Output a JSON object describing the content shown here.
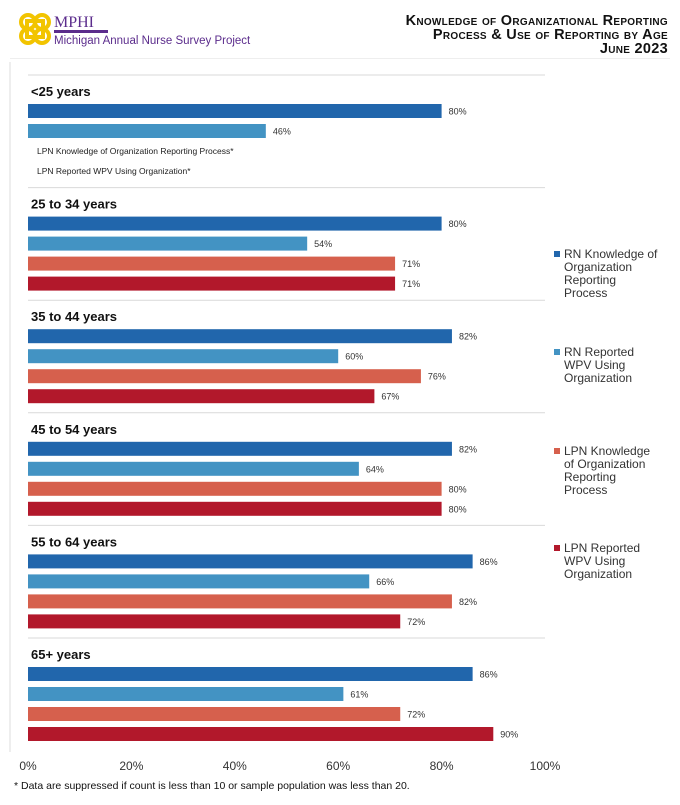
{
  "header": {
    "logo_name": "MPHI",
    "logo_subtitle": "Michigan Annual Nurse Survey Project",
    "title_lines": [
      "Knowledge of Organizational Reporting",
      "Process & Use of Reporting by Age",
      "June 2023"
    ]
  },
  "chart_data": {
    "type": "bar",
    "orientation": "horizontal",
    "title": "Knowledge of Organizational Reporting Process & Use of Reporting by Age, June 2023",
    "xlim": [
      0,
      100
    ],
    "xticks": [
      "0%",
      "20%",
      "40%",
      "60%",
      "80%",
      "100%"
    ],
    "xtick_values": [
      0,
      20,
      40,
      60,
      80,
      100
    ],
    "legend_position": "right",
    "series": [
      {
        "name": "RN Knowledge of Organization Reporting Process",
        "color": "#2166ac"
      },
      {
        "name": "RN Reported WPV Using Organization",
        "color": "#4393c3"
      },
      {
        "name": "LPN Knowledge of Organization Reporting Process",
        "color": "#d6604d"
      },
      {
        "name": "LPN Reported WPV Using Organization",
        "color": "#b2182b"
      }
    ],
    "legend_lines": [
      [
        "RN Knowledge of",
        "Organization",
        "Reporting",
        "Process"
      ],
      [
        "RN Reported",
        "WPV Using",
        "Organization"
      ],
      [
        "LPN Knowledge",
        "of Organization",
        "Reporting",
        "Process"
      ],
      [
        "LPN Reported",
        "WPV Using",
        "Organization"
      ]
    ],
    "groups": [
      {
        "label": "<25 years",
        "values": [
          80,
          46,
          null,
          null
        ],
        "suppressed_labels": [
          "",
          "",
          "LPN  Knowledge of Organization Reporting Process*",
          "LPN  Reported WPV Using Organization*"
        ]
      },
      {
        "label": "25 to 34 years",
        "values": [
          80,
          54,
          71,
          71
        ]
      },
      {
        "label": "35 to 44 years",
        "values": [
          82,
          60,
          76,
          67
        ]
      },
      {
        "label": "45 to 54 years",
        "values": [
          82,
          64,
          80,
          80
        ]
      },
      {
        "label": "55 to 64 years",
        "values": [
          86,
          66,
          82,
          72
        ]
      },
      {
        "label": "65+ years",
        "values": [
          86,
          61,
          72,
          90
        ]
      }
    ]
  },
  "footnote": "* Data are suppressed if count is less than 10 or sample population was less than 20."
}
